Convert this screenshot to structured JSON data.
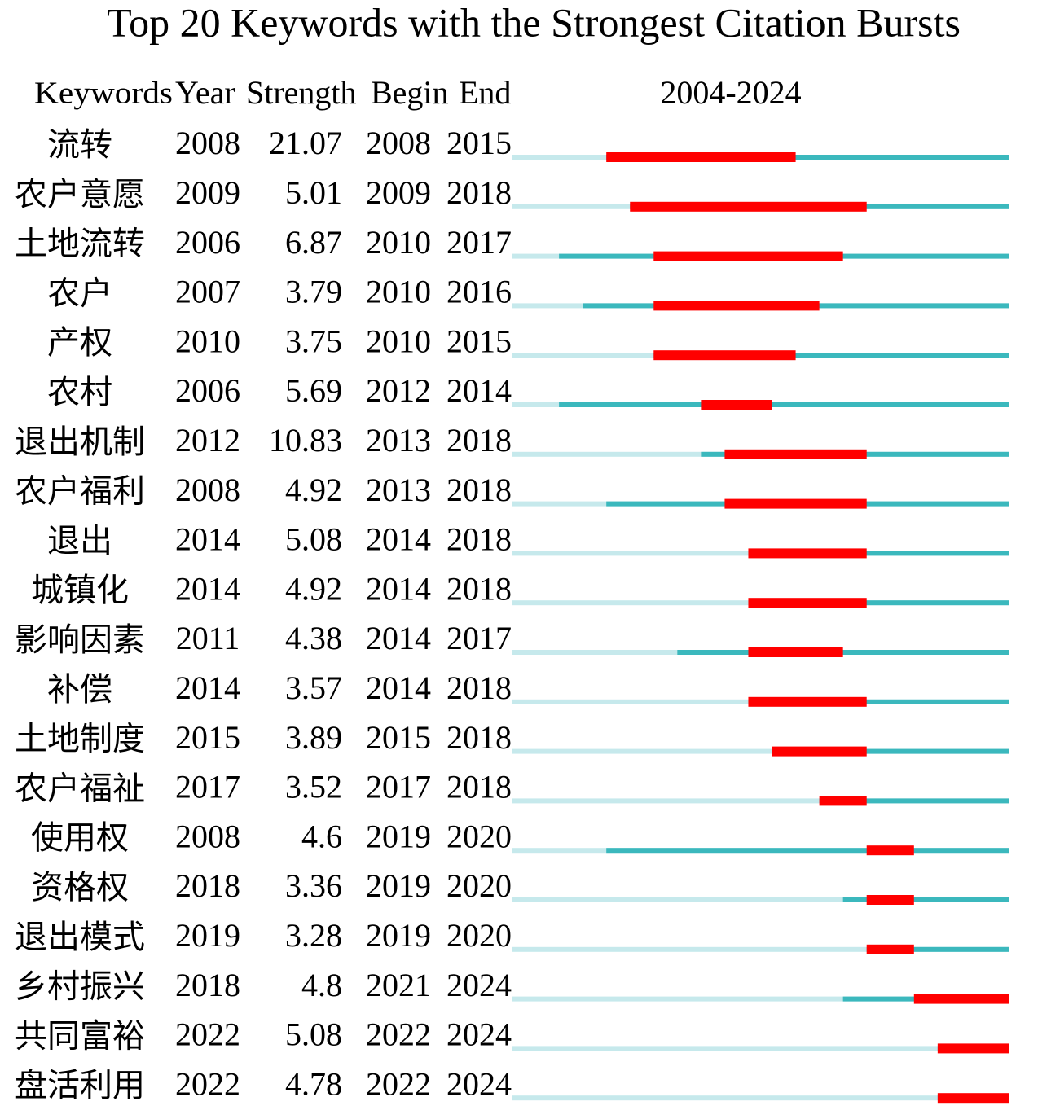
{
  "chart_data": {
    "type": "burst",
    "title": "Top 20 Keywords with the Strongest Citation Bursts",
    "columns": [
      "Keywords",
      "Year",
      "Strength",
      "Begin",
      "End"
    ],
    "range_label": "2004-2024",
    "xlim": [
      2004,
      2024
    ],
    "colors": {
      "before": "#c6e9ec",
      "active": "#3bb8bd",
      "burst": "#ff0000"
    },
    "rows": [
      {
        "keyword": "流转",
        "year": 2008,
        "strength": 21.07,
        "begin": 2008,
        "end": 2015
      },
      {
        "keyword": "农户意愿",
        "year": 2009,
        "strength": 5.01,
        "begin": 2009,
        "end": 2018
      },
      {
        "keyword": "土地流转",
        "year": 2006,
        "strength": 6.87,
        "begin": 2010,
        "end": 2017
      },
      {
        "keyword": "农户",
        "year": 2007,
        "strength": 3.79,
        "begin": 2010,
        "end": 2016
      },
      {
        "keyword": "产权",
        "year": 2010,
        "strength": 3.75,
        "begin": 2010,
        "end": 2015
      },
      {
        "keyword": "农村",
        "year": 2006,
        "strength": 5.69,
        "begin": 2012,
        "end": 2014
      },
      {
        "keyword": "退出机制",
        "year": 2012,
        "strength": 10.83,
        "begin": 2013,
        "end": 2018
      },
      {
        "keyword": "农户福利",
        "year": 2008,
        "strength": 4.92,
        "begin": 2013,
        "end": 2018
      },
      {
        "keyword": "退出",
        "year": 2014,
        "strength": 5.08,
        "begin": 2014,
        "end": 2018
      },
      {
        "keyword": "城镇化",
        "year": 2014,
        "strength": 4.92,
        "begin": 2014,
        "end": 2018
      },
      {
        "keyword": "影响因素",
        "year": 2011,
        "strength": 4.38,
        "begin": 2014,
        "end": 2017
      },
      {
        "keyword": "补偿",
        "year": 2014,
        "strength": 3.57,
        "begin": 2014,
        "end": 2018
      },
      {
        "keyword": "土地制度",
        "year": 2015,
        "strength": 3.89,
        "begin": 2015,
        "end": 2018
      },
      {
        "keyword": "农户福祉",
        "year": 2017,
        "strength": 3.52,
        "begin": 2017,
        "end": 2018
      },
      {
        "keyword": "使用权",
        "year": 2008,
        "strength": 4.6,
        "begin": 2019,
        "end": 2020
      },
      {
        "keyword": "资格权",
        "year": 2018,
        "strength": 3.36,
        "begin": 2019,
        "end": 2020
      },
      {
        "keyword": "退出模式",
        "year": 2019,
        "strength": 3.28,
        "begin": 2019,
        "end": 2020
      },
      {
        "keyword": "乡村振兴",
        "year": 2018,
        "strength": 4.8,
        "begin": 2021,
        "end": 2024
      },
      {
        "keyword": "共同富裕",
        "year": 2022,
        "strength": 5.08,
        "begin": 2022,
        "end": 2024
      },
      {
        "keyword": "盘活利用",
        "year": 2022,
        "strength": 4.78,
        "begin": 2022,
        "end": 2024
      }
    ]
  }
}
